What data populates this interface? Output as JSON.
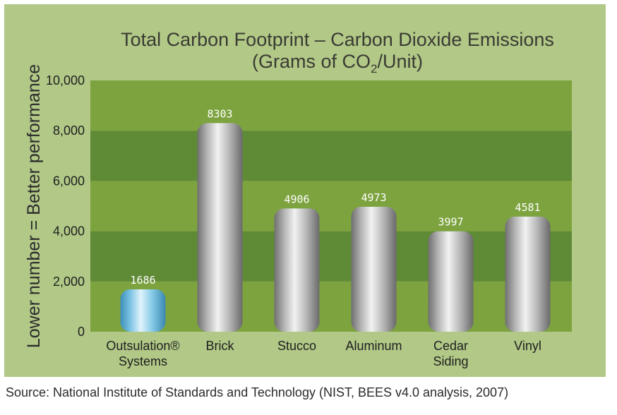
{
  "chart_data": {
    "type": "bar",
    "title": "Total Carbon Footprint – Carbon Dioxide Emissions",
    "subtitle_parts": [
      "(Grams of CO",
      "2",
      "/Unit)"
    ],
    "ylabel": "Lower number = Better performance",
    "xlabel": "",
    "categories": [
      [
        "Outsulation®",
        "Systems"
      ],
      [
        "Brick"
      ],
      [
        "Stucco"
      ],
      [
        "Aluminum"
      ],
      [
        "Cedar",
        "Siding"
      ],
      [
        "Vinyl"
      ]
    ],
    "values": [
      1686,
      8303,
      4906,
      4973,
      3997,
      4581
    ],
    "value_labels": [
      "1686",
      "8303",
      "4906",
      "4973",
      "3997",
      "4581"
    ],
    "ylim": [
      0,
      10000
    ],
    "yticks": [
      0,
      2000,
      4000,
      6000,
      8000,
      10000
    ],
    "ytick_labels": [
      "0",
      "2,000",
      "4,000",
      "6,000",
      "8,000",
      "10,000"
    ],
    "grid": "alternating horizontal bands",
    "legend": "none",
    "colors": {
      "panel": "#b1c887",
      "band_light": "#7da33f",
      "band_dark": "#5f8a36",
      "highlight_bar": "#8fd0ea",
      "bar": "#c9c9c9"
    }
  },
  "source": "Source: National Institute of Standards and Technology (NIST, BEES v4.0 analysis, 2007)"
}
